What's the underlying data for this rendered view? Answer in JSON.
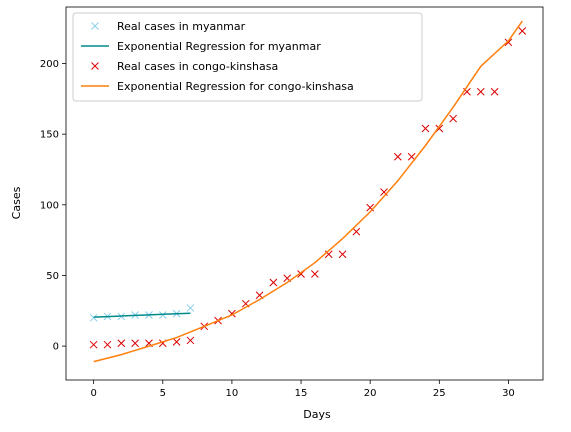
{
  "chart_data": {
    "type": "scatter",
    "title": "",
    "xlabel": "Days",
    "ylabel": "Cases",
    "xlim": [
      -2,
      32.5
    ],
    "ylim": [
      -24,
      240
    ],
    "xticks": [
      0,
      5,
      10,
      15,
      20,
      25,
      30
    ],
    "yticks": [
      0,
      50,
      100,
      150,
      200
    ],
    "grid": false,
    "legend_position": "top-left",
    "series": [
      {
        "name": "Real cases in myanmar",
        "kind": "marker",
        "marker": "x",
        "color": "#87ceeb",
        "x": [
          0,
          1,
          2,
          3,
          4,
          5,
          6,
          7
        ],
        "y": [
          20,
          21,
          21,
          22,
          22,
          22,
          23,
          27
        ]
      },
      {
        "name": "Exponential Regression for myanmar",
        "kind": "line",
        "color": "#008b8b",
        "x": [
          0,
          1,
          2,
          3,
          4,
          5,
          6,
          7
        ],
        "y": [
          20.5,
          20.9,
          21.3,
          21.7,
          22.1,
          22.5,
          22.9,
          23.3
        ]
      },
      {
        "name": "Real cases in congo-kinshasa",
        "kind": "marker",
        "marker": "x",
        "color": "#dd0000",
        "x": [
          0,
          1,
          2,
          3,
          4,
          5,
          6,
          7,
          8,
          9,
          10,
          11,
          12,
          13,
          14,
          15,
          16,
          17,
          18,
          19,
          20,
          21,
          22,
          23,
          24,
          25,
          26,
          27,
          28,
          29,
          30,
          31
        ],
        "y": [
          1,
          1,
          2,
          2,
          2,
          2,
          3,
          4,
          14,
          18,
          23,
          30,
          36,
          45,
          48,
          51,
          51,
          65,
          65,
          81,
          98,
          109,
          134,
          134,
          154,
          154,
          161,
          180,
          180,
          180,
          215,
          223
        ]
      },
      {
        "name": "Exponential Regression for congo-kinshasa",
        "kind": "line",
        "color": "#ff7f0e",
        "x": [
          0,
          2,
          4,
          6,
          8,
          10,
          12,
          14,
          16,
          18,
          20,
          22,
          24,
          26,
          28,
          30,
          31
        ],
        "y": [
          -11,
          -6,
          0,
          6,
          14,
          22,
          33,
          45,
          59,
          76,
          95,
          117,
          142,
          169,
          198,
          216,
          230
        ]
      }
    ]
  }
}
